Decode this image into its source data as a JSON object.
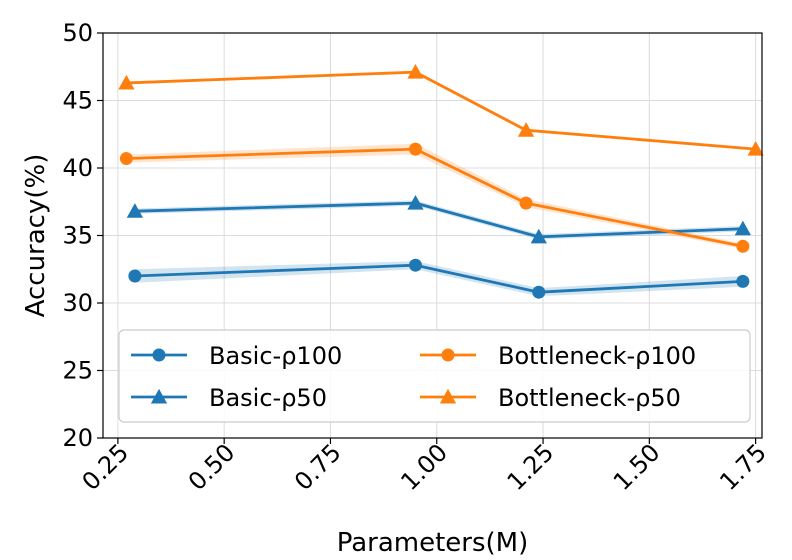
{
  "chart_data": {
    "type": "line",
    "title": "",
    "xlabel": "Parameters(M)",
    "ylabel": "Accuracy(%)",
    "xlim": [
      0.215,
      1.765
    ],
    "ylim": [
      20,
      50
    ],
    "xticks": [
      0.25,
      0.5,
      0.75,
      1.0,
      1.25,
      1.5,
      1.75
    ],
    "xtick_labels": [
      "0.25",
      "0.50",
      "0.75",
      "1.00",
      "1.25",
      "1.50",
      "1.75"
    ],
    "yticks": [
      20,
      25,
      30,
      35,
      40,
      45,
      50
    ],
    "ytick_labels": [
      "20",
      "25",
      "30",
      "35",
      "40",
      "45",
      "50"
    ],
    "grid": true,
    "legend_position": "lower-center",
    "series": [
      {
        "name": "Basic-ρ100",
        "color": "#1f77b4",
        "marker": "circle",
        "x": [
          0.29,
          0.95,
          1.24,
          1.72
        ],
        "y": [
          32.0,
          32.8,
          30.8,
          31.6
        ],
        "band": [
          0.5,
          0.3,
          0.3,
          0.4
        ]
      },
      {
        "name": "Basic-ρ50",
        "color": "#1f77b4",
        "marker": "triangle",
        "x": [
          0.29,
          0.95,
          1.24,
          1.72
        ],
        "y": [
          36.8,
          37.4,
          34.9,
          35.5
        ],
        "band": [
          0.2,
          0.2,
          0.2,
          0.2
        ]
      },
      {
        "name": "Bottleneck-ρ100",
        "color": "#ff7f0e",
        "marker": "circle",
        "x": [
          0.27,
          0.95,
          1.21,
          1.72
        ],
        "y": [
          40.7,
          41.4,
          37.4,
          34.2
        ],
        "band": [
          0.3,
          0.4,
          0.3,
          0.2
        ]
      },
      {
        "name": "Bottleneck-ρ50",
        "color": "#ff7f0e",
        "marker": "triangle",
        "x": [
          0.27,
          0.95,
          1.21,
          1.75
        ],
        "y": [
          46.3,
          47.1,
          42.8,
          41.4
        ],
        "band": [
          0.1,
          0.1,
          0.1,
          0.1
        ]
      }
    ]
  }
}
